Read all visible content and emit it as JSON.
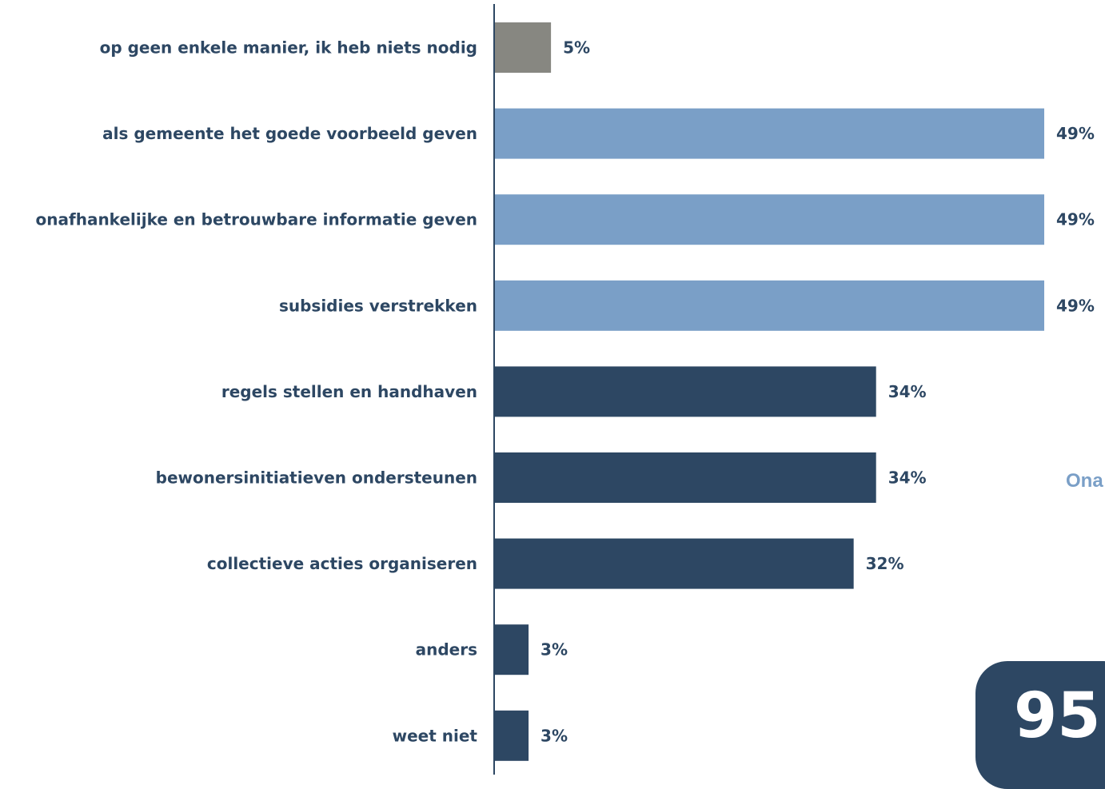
{
  "chart_data": {
    "type": "bar",
    "orientation": "horizontal",
    "categories": [
      "op geen enkele manier, ik heb niets nodig",
      "als gemeente het goede voorbeeld geven",
      "onafhankelijke en betrouwbare informatie geven",
      "subsidies verstrekken",
      "regels stellen en handhaven",
      "bewonersinitiatieven ondersteunen",
      "collectieve acties organiseren",
      "anders",
      "weet niet"
    ],
    "values": [
      5,
      49,
      49,
      49,
      34,
      34,
      32,
      3,
      3
    ],
    "value_labels": [
      "5%",
      "49%",
      "49%",
      "49%",
      "34%",
      "34%",
      "32%",
      "3%",
      "3%"
    ],
    "bar_colors": [
      "#878781",
      "#7a9fc7",
      "#7a9fc7",
      "#7a9fc7",
      "#2d4763",
      "#2d4763",
      "#2d4763",
      "#2d4763",
      "#2d4763"
    ],
    "xlim": [
      0,
      49
    ],
    "grid": false,
    "legend": "none"
  },
  "side_panel": {
    "cut_text": "Ona",
    "badge_text": "95"
  },
  "colors": {
    "label_text": "#2d4763",
    "axis_line": "#2d4763",
    "side_text": "#7a9fc7",
    "badge_bg": "#2d4763"
  }
}
